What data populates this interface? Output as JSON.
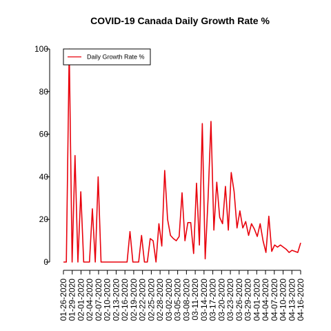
{
  "chart_data": {
    "type": "line",
    "title": "COVID-19 Canada Daily Growth Rate %",
    "xlabel": "",
    "ylabel": "",
    "ylim": [
      0,
      100
    ],
    "yticks": [
      0,
      20,
      40,
      60,
      80,
      100
    ],
    "grid": false,
    "legend_position": "top-left",
    "x_tick_labels": [
      "01-26-2020",
      "01-29-2020",
      "02-01-2020",
      "02-04-2020",
      "02-07-2020",
      "02-10-2020",
      "02-13-2020",
      "02-16-2020",
      "02-19-2020",
      "02-22-2020",
      "02-25-2020",
      "02-28-2020",
      "03-02-2020",
      "03-05-2020",
      "03-08-2020",
      "03-11-2020",
      "03-14-2020",
      "03-17-2020",
      "03-20-2020",
      "03-23-2020",
      "03-26-2020",
      "03-29-2020",
      "04-01-2020",
      "04-04-2020",
      "04-07-2020",
      "04-10-2020",
      "04-13-2020",
      "04-16-2020"
    ],
    "series": [
      {
        "name": "Daily Growth Rate %",
        "color": "#e8000b",
        "values": [
          0,
          0,
          100,
          0,
          50,
          0,
          33,
          0,
          0,
          0,
          25,
          0,
          40,
          0,
          0,
          0,
          0,
          0,
          0,
          0,
          0,
          0,
          0,
          14.3,
          0,
          0,
          0,
          12.5,
          0,
          0,
          11,
          10,
          0,
          18,
          7.5,
          43,
          20,
          12.5,
          11,
          10,
          12,
          32.5,
          10,
          18.5,
          18.5,
          4,
          37,
          8,
          65,
          1.5,
          30,
          66,
          15,
          37.5,
          21,
          18,
          35.5,
          15,
          42,
          33,
          16,
          24,
          16,
          19,
          12.5,
          18,
          15.5,
          12,
          18,
          10,
          4.5,
          21.5,
          5,
          8,
          7,
          8,
          7,
          6,
          4.5,
          5.5,
          5,
          4.5,
          9
        ]
      }
    ]
  }
}
